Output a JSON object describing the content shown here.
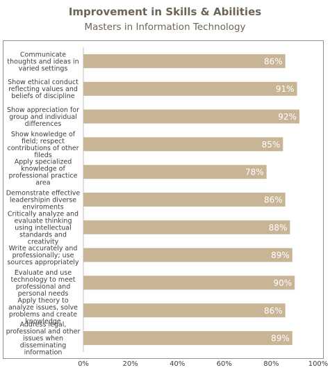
{
  "chart_data": {
    "type": "bar",
    "orientation": "horizontal",
    "title": "Improvement in Skills & Abilities",
    "subtitle": "Masters in Information Technology",
    "categories": [
      "Communicate thoughts and ideas in varied settings",
      "Show ethical conduct reflecting values and beliefs of discipline",
      "Show appreciation for group and individual differences",
      "Show knowledge of field; respect contributions of other fileds",
      "Apply specialized knowledge of professional practice area",
      "Demonstrate effective leadershipin diverse enviroments",
      "Critically analyze and evaluate thinking using intellectual standards and creativity",
      "Write accurately and professionally; use sources appropriately",
      "Evaluate and use technology to meet professional and personal needs",
      "Apply theory to analyze issues, solve problems and create knowledge",
      "Address legal, professional and other issues when disseminating information"
    ],
    "category_lines": [
      [
        "Communicate",
        "thoughts and ideas in",
        "varied settings"
      ],
      [
        "Show ethical conduct",
        "reflecting values and",
        "beliefs of discipline"
      ],
      [
        "Show appreciation for",
        "group and individual",
        "differences"
      ],
      [
        "Show knowledge of",
        "field; respect",
        "contributions of other",
        "fileds"
      ],
      [
        "Apply specialized",
        "knowledge of",
        "professional practice",
        "area"
      ],
      [
        "Demonstrate effective",
        "leadershipin diverse",
        "enviroments"
      ],
      [
        "Critically analyze and",
        "evaluate thinking",
        "using intellectual",
        "standards and",
        "creativity"
      ],
      [
        "Write accurately and",
        "professionally; use",
        "sources appropriately"
      ],
      [
        "Evaluate and use",
        "technology to meet",
        "professional and",
        "personal needs"
      ],
      [
        "Apply theory to",
        "analyze issues, solve",
        "problems and create",
        "knowledge"
      ],
      [
        "Address legal,",
        "professional and other",
        "issues when",
        "disseminating",
        "information"
      ]
    ],
    "values": [
      86,
      91,
      92,
      85,
      78,
      86,
      88,
      89,
      90,
      86,
      89
    ],
    "value_labels": [
      "86%",
      "91%",
      "92%",
      "85%",
      "78%",
      "86%",
      "88%",
      "89%",
      "90%",
      "86%",
      "89%"
    ],
    "xlim": [
      0,
      100
    ],
    "x_ticks": [
      "0%",
      "20%",
      "40%",
      "60%",
      "80%",
      "100%"
    ],
    "grid": false,
    "legend": "none",
    "bar_color": "#c8b596",
    "label_color": "#ffffff"
  }
}
